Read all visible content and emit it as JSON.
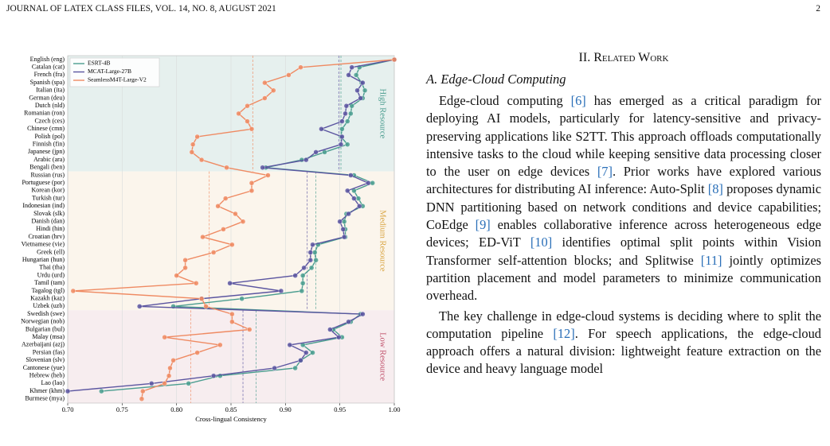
{
  "header": {
    "left": "JOURNAL OF LATEX CLASS FILES, VOL. 14, NO. 8, AUGUST 2021",
    "page": "2"
  },
  "chart_data": {
    "type": "line",
    "orientation": "horizontal",
    "xlabel": "Cross-lingual Consistency",
    "xlim": [
      0.7,
      1.0
    ],
    "xticks": [
      {
        "value": 0.7,
        "label": "0.70"
      },
      {
        "value": 0.75,
        "label": "0.75"
      },
      {
        "value": 0.8,
        "label": "0.80"
      },
      {
        "value": 0.85,
        "label": "0.85"
      },
      {
        "value": 0.9,
        "label": "0.90"
      },
      {
        "value": 0.95,
        "label": "0.95"
      },
      {
        "value": 1.0,
        "label": "1.00"
      }
    ],
    "grid": true,
    "legend": "upper left",
    "groups": [
      {
        "name": "High Resource",
        "color": "#e6f0ee",
        "label_color": "#4a9d8f",
        "categories": [
          "English (eng)",
          "Catalan (cat)",
          "French (fra)",
          "Spanish (spa)",
          "Italian (ita)",
          "German (deu)",
          "Dutch (nld)",
          "Romanian (ron)",
          "Czech (ces)",
          "Chinese (cmn)",
          "Polish (pol)",
          "Finnish (fin)",
          "Japanese (jpn)",
          "Arabic (ara)",
          "Bengali (ben)"
        ]
      },
      {
        "name": "Medium Resource",
        "color": "#fbf5ec",
        "label_color": "#d9a441",
        "categories": [
          "Russian (rus)",
          "Portuguese (por)",
          "Korean (kor)",
          "Turkish (tur)",
          "Indonesian (ind)",
          "Slovak (slk)",
          "Danish (dan)",
          "Hindi (hin)",
          "Croatian (hrv)",
          "Vietnamese (vie)",
          "Greek (ell)",
          "Hungarian (hun)",
          "Thai (tha)",
          "Urdu (urd)",
          "Tamil (tam)",
          "Tagalog (tgl)",
          "Kazakh (kaz)",
          "Uzbek (uzb)"
        ]
      },
      {
        "name": "Low Resource",
        "color": "#f7edef",
        "label_color": "#c0506a",
        "categories": [
          "Swedish (swe)",
          "Norwegian (nob)",
          "Bulgarian (bul)",
          "Malay (msa)",
          "Azerbaijani (azj)",
          "Persian (fas)",
          "Slovenian (slv)",
          "Cantonese (yue)",
          "Hebrew (heb)",
          "Lao (lao)",
          "Khmer (khm)",
          "Burmese (mya)"
        ]
      }
    ],
    "series": [
      {
        "name": "ESRT-4B",
        "color": "#4a9d8f",
        "group_means": [
          0.951,
          0.928,
          0.873
        ],
        "values": [
          1.0,
          0.968,
          0.965,
          0.97,
          0.973,
          0.971,
          0.961,
          0.96,
          0.957,
          0.952,
          0.951,
          0.957,
          0.936,
          0.915,
          0.882,
          0.963,
          0.98,
          0.963,
          0.967,
          0.971,
          0.956,
          0.954,
          0.955,
          0.955,
          0.93,
          0.927,
          0.928,
          0.924,
          0.916,
          0.916,
          0.915,
          0.86,
          0.797,
          0.969,
          0.96,
          0.944,
          0.952,
          0.916,
          0.925,
          0.914,
          0.909,
          0.84,
          0.811,
          0.731,
          null
        ]
      },
      {
        "name": "MCAT-Large-27B",
        "color": "#5b55a0",
        "group_means": [
          0.949,
          0.92,
          0.861
        ],
        "values": [
          1.0,
          0.961,
          0.958,
          0.971,
          0.966,
          0.969,
          0.956,
          0.955,
          0.952,
          0.933,
          0.952,
          0.951,
          0.928,
          0.919,
          0.879,
          0.96,
          0.976,
          0.957,
          0.963,
          0.968,
          0.958,
          0.95,
          0.953,
          0.954,
          0.925,
          0.923,
          0.923,
          0.917,
          0.909,
          0.849,
          0.896,
          0.823,
          0.766,
          0.971,
          0.958,
          0.941,
          0.949,
          0.904,
          0.919,
          0.914,
          0.89,
          0.834,
          0.777,
          0.7,
          null
        ]
      },
      {
        "name": "SeamlessM4T-Large-V2",
        "color": "#ef8a62",
        "group_means": [
          0.87,
          0.83,
          0.813
        ],
        "values": [
          1.0,
          0.914,
          0.903,
          0.881,
          0.889,
          0.881,
          0.865,
          0.857,
          0.865,
          0.869,
          0.819,
          0.815,
          0.814,
          0.823,
          0.846,
          0.884,
          0.869,
          0.869,
          0.845,
          0.838,
          0.854,
          0.861,
          0.843,
          0.824,
          0.851,
          0.834,
          0.808,
          0.808,
          0.8,
          0.818,
          0.705,
          0.823,
          0.827,
          0.851,
          0.851,
          0.867,
          0.789,
          0.84,
          0.819,
          0.797,
          0.794,
          0.793,
          0.789,
          0.769,
          0.768
        ]
      }
    ]
  },
  "section": {
    "heading": "II. Related Work",
    "subheading": "A. Edge-Cloud Computing",
    "paragraphs": [
      "Edge-cloud computing [6] has emerged as a critical paradigm for deploying AI models, particularly for latency-sensitive and privacy-preserving applications like S2TT. This approach offloads computationally intensive tasks to the cloud while keeping sensitive data processing closer to the user on edge devices [7]. Prior works have explored various architectures for distributing AI inference: Auto-Split [8] proposes dynamic DNN partitioning based on network conditions and device capabilities; CoEdge [9] enables collaborative inference across heterogeneous edge devices; ED-ViT [10] identifies optimal split points within Vision Transformer self-attention blocks; and Splitwise [11] jointly optimizes partition placement and model parameters to minimize communication overhead.",
      "The key challenge in edge-cloud systems is deciding where to split the computation pipeline [12]. For speech applications, the edge-cloud approach offers a natural division: lightweight feature extraction on the device and heavy language model"
    ]
  }
}
